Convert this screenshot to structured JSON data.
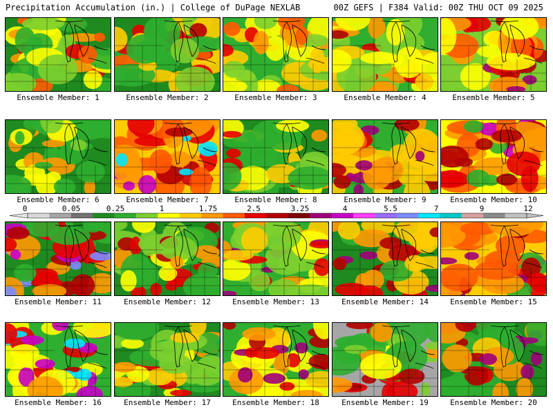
{
  "header": {
    "title_left": "Precipitation Accumulation (in.) | College of DuPage NEXLAB",
    "title_right": "00Z GEFS | F384 Valid: 00Z THU OCT 09 2025"
  },
  "colorbar": {
    "labels": [
      "0",
      "0.05",
      "0.25",
      "1",
      "1.75",
      "2.5",
      "3.25",
      "4",
      "5.5",
      "7",
      "9",
      "12"
    ],
    "colors": [
      "#d9d9d9",
      "#a6a6a6",
      "#737373",
      "#1f8a1f",
      "#2fae2f",
      "#7ccf2f",
      "#ffff00",
      "#ffcc00",
      "#ff9900",
      "#ff5a00",
      "#e60000",
      "#b40000",
      "#800000",
      "#a0007a",
      "#c800c8",
      "#ff3cff",
      "#9a6cff",
      "#7a8cff",
      "#00e6ff",
      "#00c8c8",
      "#d9a0a0",
      "#8c8c8c",
      "#c0c0c0"
    ]
  },
  "panels": [
    {
      "label": "Ensemble Member: 1",
      "palette": [
        "#1f8a1f",
        "#2fae2f",
        "#7ccf2f",
        "#ffff00",
        "#ff9900",
        "#ff5a00",
        "#e60000"
      ]
    },
    {
      "label": "Ensemble Member: 2",
      "palette": [
        "#1f8a1f",
        "#2fae2f",
        "#7ccf2f",
        "#ffcc00",
        "#ff5a00",
        "#e60000",
        "#b40000"
      ]
    },
    {
      "label": "Ensemble Member: 3",
      "palette": [
        "#2fae2f",
        "#7ccf2f",
        "#ffff00",
        "#ffcc00",
        "#ff9900",
        "#ff5a00",
        "#e60000"
      ]
    },
    {
      "label": "Ensemble Member: 4",
      "palette": [
        "#2fae2f",
        "#7ccf2f",
        "#ffff00",
        "#ffcc00",
        "#ff9900",
        "#e60000",
        "#b40000"
      ]
    },
    {
      "label": "Ensemble Member: 5",
      "palette": [
        "#7ccf2f",
        "#ffff00",
        "#ff9900",
        "#ff5a00",
        "#e60000",
        "#b40000",
        "#a0007a"
      ]
    },
    {
      "label": "Ensemble Member: 6",
      "palette": [
        "#1f8a1f",
        "#2fae2f",
        "#1f8a1f",
        "#7ccf2f",
        "#ffff00",
        "#ff9900",
        "#2fae2f"
      ]
    },
    {
      "label": "Ensemble Member: 7",
      "palette": [
        "#ffcc00",
        "#ff9900",
        "#ff5a00",
        "#e60000",
        "#b40000",
        "#c800c8",
        "#00e6ff"
      ]
    },
    {
      "label": "Ensemble Member: 8",
      "palette": [
        "#1f8a1f",
        "#2fae2f",
        "#7ccf2f",
        "#ffff00",
        "#ffcc00",
        "#ff9900",
        "#e60000"
      ]
    },
    {
      "label": "Ensemble Member: 9",
      "palette": [
        "#2fae2f",
        "#ffcc00",
        "#ff9900",
        "#ff5a00",
        "#e60000",
        "#b40000",
        "#a0007a"
      ]
    },
    {
      "label": "Ensemble Member: 10",
      "palette": [
        "#ffff00",
        "#ff9900",
        "#ff5a00",
        "#e60000",
        "#b40000",
        "#2fae2f",
        "#c800c8"
      ]
    },
    {
      "label": "Ensemble Member: 11",
      "palette": [
        "#1f8a1f",
        "#2fae2f",
        "#ff9900",
        "#e60000",
        "#b40000",
        "#c800c8",
        "#7a8cff"
      ]
    },
    {
      "label": "Ensemble Member: 12",
      "palette": [
        "#1f8a1f",
        "#2fae2f",
        "#7ccf2f",
        "#ffff00",
        "#ff9900",
        "#e60000",
        "#b40000"
      ]
    },
    {
      "label": "Ensemble Member: 13",
      "palette": [
        "#2fae2f",
        "#7ccf2f",
        "#ffff00",
        "#ffcc00",
        "#ff9900",
        "#e60000",
        "#a0007a"
      ]
    },
    {
      "label": "Ensemble Member: 14",
      "palette": [
        "#1f8a1f",
        "#2fae2f",
        "#ffcc00",
        "#ff9900",
        "#e60000",
        "#b40000",
        "#a0007a"
      ]
    },
    {
      "label": "Ensemble Member: 15",
      "palette": [
        "#ffcc00",
        "#ff9900",
        "#ff5a00",
        "#e60000",
        "#b40000",
        "#2fae2f",
        "#a0007a"
      ]
    },
    {
      "label": "Ensemble Member: 16",
      "palette": [
        "#2fae2f",
        "#ffff00",
        "#ff9900",
        "#e60000",
        "#b40000",
        "#c800c8",
        "#00e6ff"
      ]
    },
    {
      "label": "Ensemble Member: 17",
      "palette": [
        "#1f8a1f",
        "#2fae2f",
        "#7ccf2f",
        "#ffff00",
        "#ffcc00",
        "#ff9900",
        "#e60000"
      ]
    },
    {
      "label": "Ensemble Member: 18",
      "palette": [
        "#2fae2f",
        "#ffff00",
        "#ffcc00",
        "#ff9900",
        "#e60000",
        "#b40000",
        "#a0007a"
      ]
    },
    {
      "label": "Ensemble Member: 19",
      "palette": [
        "#a6a6a6",
        "#2fae2f",
        "#ffff00",
        "#ff9900",
        "#e60000",
        "#b40000",
        "#7ccf2f"
      ]
    },
    {
      "label": "Ensemble Member: 20",
      "palette": [
        "#1f8a1f",
        "#2fae2f",
        "#ffcc00",
        "#ff9900",
        "#e60000",
        "#b40000",
        "#a0007a"
      ]
    }
  ]
}
